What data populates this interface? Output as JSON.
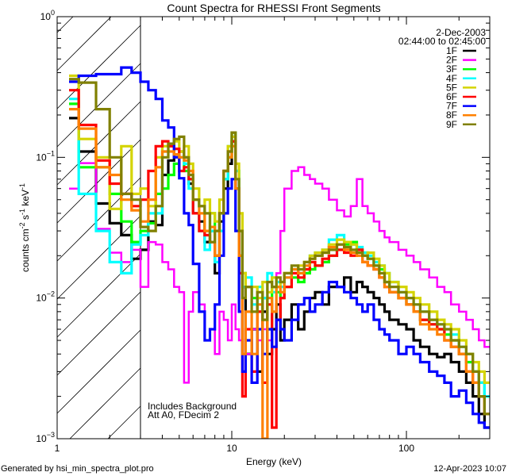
{
  "chart_data": {
    "type": "line",
    "title": "Count Spectra for RHESSI Front Segments",
    "xlabel": "Energy (keV)",
    "ylabel_parts": [
      "counts cm",
      "-2",
      " s",
      "-1",
      " keV",
      "-1"
    ],
    "xscale": "log",
    "yscale": "log",
    "xlim": [
      1,
      300
    ],
    "ylim": [
      0.001,
      1
    ],
    "x_tick_labels": [
      {
        "value": 1,
        "label": "1"
      },
      {
        "value": 10,
        "label": "10"
      },
      {
        "value": 100,
        "label": "100"
      }
    ],
    "y_tick_labels": [
      {
        "value": 1,
        "base": "10",
        "exp": "0"
      },
      {
        "value": 0.1,
        "base": "10",
        "exp": "−1"
      },
      {
        "value": 0.01,
        "base": "10",
        "exp": "−2"
      },
      {
        "value": 0.001,
        "base": "10",
        "exp": "−3"
      }
    ],
    "excluded_region_keV": [
      1,
      3
    ],
    "legend_position": "top-right",
    "legend_header": [
      "2-Dec-2003",
      "02:44:00 to 02:45:00"
    ],
    "annotations": [
      "Includes Background",
      "Att A0, FDecim 2"
    ],
    "energy_edges": [
      1.17,
      1.33,
      1.67,
      2.0,
      2.33,
      2.67,
      3.0,
      3.33,
      3.67,
      4.0,
      4.33,
      4.67,
      5.0,
      5.33,
      5.67,
      6.0,
      6.5,
      7,
      7.5,
      8,
      8.5,
      9,
      9.5,
      10,
      10.5,
      11,
      11.5,
      12,
      13,
      14,
      15,
      16,
      17,
      18,
      19,
      20,
      22,
      24,
      26,
      28,
      30,
      33,
      36,
      40,
      44,
      48,
      52,
      56,
      60,
      65,
      70,
      75,
      80,
      90,
      100,
      110,
      120,
      135,
      150,
      165,
      180,
      200,
      220,
      240,
      260,
      280,
      300
    ],
    "series": [
      {
        "name": "1F",
        "color": "#000000",
        "values": [
          0.19,
          0.11,
          0.047,
          0.034,
          0.028,
          0.019,
          0.022,
          0.035,
          0.033,
          0.075,
          0.095,
          0.105,
          0.11,
          0.1,
          0.065,
          0.04,
          0.035,
          0.025,
          0.03,
          0.015,
          0.035,
          0.06,
          0.09,
          0.13,
          0.06,
          0.02,
          0.012,
          0.004,
          0.006,
          0.003,
          0.008,
          0.004,
          0.006,
          0.009,
          0.005,
          0.007,
          0.009,
          0.006,
          0.008,
          0.01,
          0.011,
          0.009,
          0.012,
          0.012,
          0.014,
          0.011,
          0.013,
          0.012,
          0.011,
          0.01,
          0.009,
          0.008,
          0.007,
          0.0065,
          0.006,
          0.005,
          0.0045,
          0.004,
          0.0038,
          0.004,
          0.0035,
          0.003,
          0.0025,
          0.002,
          0.0015,
          0.0012
        ]
      },
      {
        "name": "2F",
        "color": "#ff00ff",
        "values": [
          0.06,
          0.091,
          0.031,
          0.021,
          0.018,
          0.022,
          0.012,
          0.025,
          0.024,
          0.018,
          0.016,
          0.012,
          0.011,
          0.0025,
          0.008,
          0.011,
          0.009,
          0.005,
          0.006,
          0.004,
          0.008,
          0.007,
          0.005,
          0.009,
          0.006,
          0.005,
          0.003,
          0.004,
          0.006,
          0.005,
          0.006,
          0.005,
          0.008,
          0.015,
          0.03,
          0.06,
          0.08,
          0.085,
          0.075,
          0.07,
          0.065,
          0.06,
          0.05,
          0.042,
          0.038,
          0.045,
          0.07,
          0.045,
          0.04,
          0.035,
          0.03,
          0.027,
          0.025,
          0.022,
          0.02,
          0.018,
          0.016,
          0.014,
          0.012,
          0.011,
          0.009,
          0.008,
          0.007,
          0.006,
          0.005,
          0.0045
        ]
      },
      {
        "name": "3F",
        "color": "#00ff00",
        "values": [
          0.24,
          0.085,
          0.085,
          0.055,
          0.035,
          0.025,
          0.03,
          0.034,
          0.055,
          0.06,
          0.075,
          0.09,
          0.1,
          0.08,
          0.07,
          0.05,
          0.045,
          0.03,
          0.04,
          0.02,
          0.04,
          0.07,
          0.1,
          0.15,
          0.08,
          0.03,
          0.015,
          0.012,
          0.01,
          0.008,
          0.01,
          0.006,
          0.012,
          0.011,
          0.01,
          0.012,
          0.014,
          0.013,
          0.015,
          0.016,
          0.017,
          0.018,
          0.02,
          0.022,
          0.024,
          0.025,
          0.022,
          0.021,
          0.019,
          0.017,
          0.016,
          0.013,
          0.011,
          0.01,
          0.009,
          0.008,
          0.007,
          0.0065,
          0.006,
          0.0055,
          0.005,
          0.004,
          0.0035,
          0.003,
          0.0025,
          0.002
        ]
      },
      {
        "name": "4F",
        "color": "#00ffff",
        "values": [
          0.26,
          0.055,
          0.03,
          0.018,
          0.015,
          0.024,
          0.028,
          0.04,
          0.04,
          0.11,
          0.12,
          0.115,
          0.1,
          0.09,
          0.06,
          0.04,
          0.03,
          0.022,
          0.03,
          0.018,
          0.03,
          0.07,
          0.12,
          0.14,
          0.08,
          0.03,
          0.012,
          0.014,
          0.009,
          0.012,
          0.01,
          0.015,
          0.011,
          0.013,
          0.012,
          0.014,
          0.016,
          0.015,
          0.017,
          0.02,
          0.021,
          0.022,
          0.026,
          0.028,
          0.025,
          0.024,
          0.023,
          0.021,
          0.02,
          0.018,
          0.017,
          0.015,
          0.013,
          0.011,
          0.01,
          0.009,
          0.008,
          0.007,
          0.0065,
          0.006,
          0.0055,
          0.0045,
          0.004,
          0.003,
          0.0025,
          0.002
        ]
      },
      {
        "name": "5F",
        "color": "#d4d400",
        "values": [
          0.38,
          0.135,
          0.1,
          0.043,
          0.12,
          0.055,
          0.06,
          0.045,
          0.1,
          0.12,
          0.12,
          0.13,
          0.11,
          0.12,
          0.09,
          0.06,
          0.045,
          0.05,
          0.04,
          0.035,
          0.05,
          0.08,
          0.12,
          0.14,
          0.09,
          0.04,
          0.015,
          0.012,
          0.012,
          0.01,
          0.013,
          0.011,
          0.014,
          0.012,
          0.013,
          0.015,
          0.016,
          0.017,
          0.018,
          0.02,
          0.021,
          0.022,
          0.024,
          0.026,
          0.025,
          0.024,
          0.022,
          0.02,
          0.021,
          0.019,
          0.017,
          0.015,
          0.013,
          0.012,
          0.011,
          0.01,
          0.009,
          0.008,
          0.007,
          0.0065,
          0.006,
          0.005,
          0.004,
          0.0035,
          0.003,
          0.0025
        ]
      },
      {
        "name": "6F",
        "color": "#ff0000",
        "values": [
          0.3,
          0.17,
          0.095,
          0.065,
          0.055,
          0.045,
          0.05,
          0.08,
          0.12,
          0.13,
          0.12,
          0.115,
          0.08,
          0.085,
          0.07,
          0.04,
          0.03,
          0.028,
          0.025,
          0.02,
          0.04,
          0.08,
          0.11,
          0.13,
          0.06,
          0.015,
          0.002,
          0.006,
          0.003,
          0.008,
          0.0025,
          0.009,
          0.0012,
          0.007,
          0.01,
          0.012,
          0.015,
          0.014,
          0.016,
          0.018,
          0.017,
          0.019,
          0.02,
          0.022,
          0.021,
          0.02,
          0.022,
          0.018,
          0.017,
          0.016,
          0.014,
          0.012,
          0.011,
          0.01,
          0.009,
          0.008,
          0.007,
          0.0065,
          0.006,
          0.005,
          0.0045,
          0.004,
          0.003,
          0.0025,
          0.002,
          0.0015
        ]
      },
      {
        "name": "7F",
        "color": "#0000ff",
        "values": [
          0.345,
          0.38,
          0.39,
          0.39,
          0.435,
          0.4,
          0.345,
          0.3,
          0.26,
          0.183,
          0.163,
          0.1,
          0.071,
          0.04,
          0.033,
          0.0175,
          0.008,
          0.005,
          0.006,
          0.009,
          0.02,
          0.04,
          0.06,
          0.07,
          0.03,
          0.008,
          0.003,
          0.005,
          0.0025,
          0.006,
          0.004,
          0.006,
          0.0045,
          0.007,
          0.006,
          0.005,
          0.007,
          0.009,
          0.01,
          0.008,
          0.009,
          0.011,
          0.013,
          0.012,
          0.011,
          0.01,
          0.009,
          0.008,
          0.009,
          0.007,
          0.006,
          0.0055,
          0.005,
          0.004,
          0.0045,
          0.004,
          0.0035,
          0.003,
          0.0028,
          0.0025,
          0.002,
          0.0022,
          0.0018,
          0.0015,
          0.0013,
          0.0012
        ]
      },
      {
        "name": "8F",
        "color": "#ff8000",
        "values": [
          0.22,
          0.16,
          0.085,
          0.075,
          0.05,
          0.042,
          0.035,
          0.05,
          0.085,
          0.11,
          0.11,
          0.105,
          0.1,
          0.095,
          0.08,
          0.05,
          0.04,
          0.03,
          0.032,
          0.02,
          0.04,
          0.08,
          0.1,
          0.12,
          0.06,
          0.02,
          0.004,
          0.008,
          0.004,
          0.009,
          0.001,
          0.01,
          0.008,
          0.012,
          0.011,
          0.014,
          0.016,
          0.015,
          0.017,
          0.019,
          0.02,
          0.021,
          0.023,
          0.024,
          0.022,
          0.021,
          0.02,
          0.018,
          0.017,
          0.016,
          0.014,
          0.012,
          0.011,
          0.01,
          0.009,
          0.008,
          0.0065,
          0.006,
          0.0055,
          0.005,
          0.0045,
          0.004,
          0.003,
          0.0025,
          0.002,
          0.0015
        ]
      },
      {
        "name": "9F",
        "color": "#808000",
        "values": [
          0.36,
          0.34,
          0.22,
          0.1,
          0.055,
          0.05,
          0.032,
          0.03,
          0.045,
          0.1,
          0.125,
          0.135,
          0.14,
          0.1,
          0.075,
          0.05,
          0.045,
          0.04,
          0.025,
          0.03,
          0.04,
          0.08,
          0.11,
          0.15,
          0.07,
          0.03,
          0.01,
          0.012,
          0.008,
          0.011,
          0.007,
          0.013,
          0.012,
          0.014,
          0.013,
          0.015,
          0.017,
          0.016,
          0.018,
          0.019,
          0.02,
          0.021,
          0.022,
          0.024,
          0.023,
          0.022,
          0.021,
          0.02,
          0.019,
          0.017,
          0.015,
          0.013,
          0.012,
          0.011,
          0.01,
          0.009,
          0.008,
          0.007,
          0.0065,
          0.006,
          0.005,
          0.0045,
          0.004,
          0.003,
          0.002,
          0.0015
        ]
      }
    ]
  },
  "footer": {
    "generated_by": "Generated by hsi_min_spectra_plot.pro",
    "timestamp": "12-Apr-2023 10:07"
  }
}
